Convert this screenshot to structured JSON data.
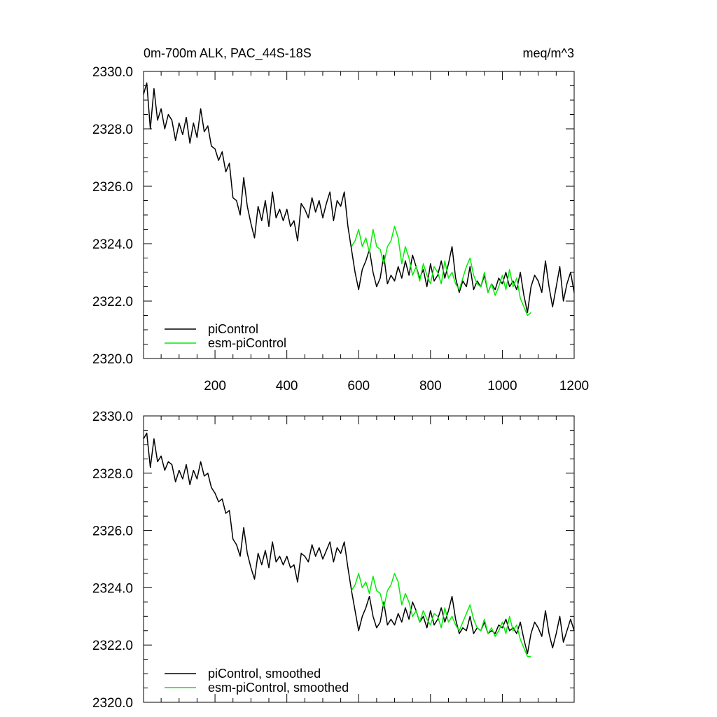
{
  "chart_data": [
    {
      "type": "line",
      "title_left": "0m-700m ALK, PAC_44S-18S",
      "title_right": "meq/m^3",
      "xlim": [
        1,
        1200
      ],
      "ylim": [
        2320,
        2330
      ],
      "xticks": [
        200,
        400,
        600,
        800,
        1000,
        1200
      ],
      "yticks": [
        2320.0,
        2322.0,
        2324.0,
        2326.0,
        2328.0,
        2330.0
      ],
      "ytick_labels": [
        "2320.0",
        "2322.0",
        "2324.0",
        "2326.0",
        "2328.0",
        "2330.0"
      ],
      "show_xtick_labels": true,
      "legend": "bottom-left",
      "series": [
        {
          "name": "piControl",
          "color": "#000000",
          "x": [
            1,
            10,
            20,
            30,
            40,
            50,
            60,
            70,
            80,
            90,
            100,
            110,
            120,
            130,
            140,
            150,
            160,
            170,
            180,
            190,
            200,
            210,
            220,
            230,
            240,
            250,
            260,
            270,
            280,
            290,
            300,
            310,
            320,
            330,
            340,
            350,
            360,
            370,
            380,
            390,
            400,
            410,
            420,
            430,
            440,
            450,
            460,
            470,
            480,
            490,
            500,
            510,
            520,
            530,
            540,
            550,
            560,
            570,
            580,
            590,
            600,
            610,
            620,
            630,
            640,
            650,
            660,
            670,
            680,
            690,
            700,
            710,
            720,
            730,
            740,
            750,
            760,
            770,
            780,
            790,
            800,
            810,
            820,
            830,
            840,
            850,
            860,
            870,
            880,
            890,
            900,
            910,
            920,
            930,
            940,
            950,
            960,
            970,
            980,
            990,
            1000,
            1010,
            1020,
            1030,
            1040,
            1050,
            1060,
            1070,
            1080,
            1090,
            1100,
            1110,
            1120,
            1130,
            1140,
            1150,
            1160,
            1170,
            1180,
            1190,
            1200
          ],
          "values": [
            2329.2,
            2329.6,
            2328.0,
            2329.4,
            2328.3,
            2328.7,
            2328.0,
            2328.5,
            2328.3,
            2327.6,
            2328.2,
            2327.8,
            2328.4,
            2327.5,
            2328.2,
            2327.7,
            2328.7,
            2327.9,
            2328.1,
            2327.4,
            2327.3,
            2326.9,
            2327.2,
            2326.5,
            2326.8,
            2325.6,
            2325.5,
            2325.0,
            2326.3,
            2325.3,
            2324.7,
            2324.2,
            2325.3,
            2324.8,
            2325.5,
            2324.6,
            2325.8,
            2324.9,
            2325.2,
            2324.8,
            2325.2,
            2324.6,
            2324.8,
            2324.1,
            2325.4,
            2325.2,
            2324.9,
            2325.6,
            2325.1,
            2325.5,
            2324.9,
            2325.4,
            2325.8,
            2324.8,
            2325.5,
            2325.3,
            2325.8,
            2324.6,
            2323.8,
            2323.0,
            2322.4,
            2323.1,
            2323.4,
            2323.8,
            2323.0,
            2322.5,
            2322.8,
            2323.6,
            2322.6,
            2322.9,
            2322.7,
            2323.2,
            2322.8,
            2323.4,
            2322.9,
            2323.6,
            2323.2,
            2322.8,
            2323.1,
            2322.5,
            2323.3,
            2322.7,
            2322.9,
            2323.4,
            2322.8,
            2323.3,
            2323.9,
            2322.8,
            2322.3,
            2322.7,
            2322.5,
            2323.2,
            2322.4,
            2322.7,
            2322.5,
            2322.9,
            2322.3,
            2322.6,
            2322.4,
            2322.8,
            2322.6,
            2323.0,
            2322.5,
            2322.7,
            2322.4,
            2323.0,
            2322.2,
            2321.6,
            2322.5,
            2322.9,
            2322.7,
            2322.3,
            2323.4,
            2322.5,
            2321.8,
            2322.5,
            2323.2,
            2322.0,
            2322.6,
            2323.0,
            2322.3
          ]
        },
        {
          "name": "esm-piControl",
          "color": "#00ee00",
          "x": [
            580,
            590,
            600,
            610,
            620,
            630,
            640,
            650,
            660,
            670,
            680,
            690,
            700,
            710,
            720,
            730,
            740,
            750,
            760,
            770,
            780,
            790,
            800,
            810,
            820,
            830,
            840,
            850,
            860,
            870,
            880,
            890,
            900,
            910,
            920,
            930,
            940,
            950,
            960,
            970,
            980,
            990,
            1000,
            1010,
            1020,
            1030,
            1040,
            1050,
            1060,
            1070,
            1080
          ],
          "values": [
            2323.9,
            2324.1,
            2324.5,
            2323.9,
            2324.2,
            2323.7,
            2324.5,
            2323.9,
            2323.8,
            2323.3,
            2323.9,
            2324.1,
            2324.6,
            2324.2,
            2323.3,
            2323.9,
            2323.5,
            2322.9,
            2323.2,
            2322.7,
            2323.3,
            2322.9,
            2322.6,
            2323.2,
            2323.0,
            2322.6,
            2323.4,
            2322.8,
            2323.0,
            2322.6,
            2322.4,
            2322.8,
            2323.2,
            2323.5,
            2322.9,
            2322.6,
            2322.5,
            2323.0,
            2322.3,
            2322.6,
            2322.2,
            2322.5,
            2322.9,
            2322.4,
            2323.1,
            2322.5,
            2322.8,
            2322.1,
            2321.8,
            2321.5,
            2321.6
          ]
        }
      ]
    },
    {
      "type": "line",
      "xlim": [
        1,
        1200
      ],
      "ylim": [
        2320,
        2330
      ],
      "xticks": [
        200,
        400,
        600,
        800,
        1000,
        1200
      ],
      "yticks": [
        2320.0,
        2322.0,
        2324.0,
        2326.0,
        2328.0,
        2330.0
      ],
      "ytick_labels": [
        "2320.0",
        "2322.0",
        "2324.0",
        "2326.0",
        "2328.0",
        "2330.0"
      ],
      "show_xtick_labels": false,
      "legend": "bottom-left",
      "series": [
        {
          "name": "piControl, smoothed",
          "color": "#000000",
          "x": [
            1,
            10,
            20,
            30,
            40,
            50,
            60,
            70,
            80,
            90,
            100,
            110,
            120,
            130,
            140,
            150,
            160,
            170,
            180,
            190,
            200,
            210,
            220,
            230,
            240,
            250,
            260,
            270,
            280,
            290,
            300,
            310,
            320,
            330,
            340,
            350,
            360,
            370,
            380,
            390,
            400,
            410,
            420,
            430,
            440,
            450,
            460,
            470,
            480,
            490,
            500,
            510,
            520,
            530,
            540,
            550,
            560,
            570,
            580,
            590,
            600,
            610,
            620,
            630,
            640,
            650,
            660,
            670,
            680,
            690,
            700,
            710,
            720,
            730,
            740,
            750,
            760,
            770,
            780,
            790,
            800,
            810,
            820,
            830,
            840,
            850,
            860,
            870,
            880,
            890,
            900,
            910,
            920,
            930,
            940,
            950,
            960,
            970,
            980,
            990,
            1000,
            1010,
            1020,
            1030,
            1040,
            1050,
            1060,
            1070,
            1080,
            1090,
            1100,
            1110,
            1120,
            1130,
            1140,
            1150,
            1160,
            1170,
            1180,
            1190,
            1200
          ],
          "values": [
            2329.2,
            2329.4,
            2328.2,
            2329.2,
            2328.4,
            2328.6,
            2328.1,
            2328.4,
            2328.3,
            2327.7,
            2328.1,
            2327.8,
            2328.3,
            2327.6,
            2328.1,
            2327.8,
            2328.4,
            2327.9,
            2328.0,
            2327.5,
            2327.3,
            2327.0,
            2327.1,
            2326.6,
            2326.7,
            2325.7,
            2325.5,
            2325.1,
            2326.1,
            2325.2,
            2324.7,
            2324.3,
            2325.2,
            2324.8,
            2325.3,
            2324.7,
            2325.6,
            2324.9,
            2325.1,
            2324.8,
            2325.1,
            2324.7,
            2324.8,
            2324.2,
            2325.2,
            2325.1,
            2324.9,
            2325.5,
            2325.1,
            2325.4,
            2325.0,
            2325.3,
            2325.6,
            2324.9,
            2325.4,
            2325.2,
            2325.6,
            2324.7,
            2323.9,
            2323.2,
            2322.5,
            2323.0,
            2323.3,
            2323.7,
            2323.0,
            2322.6,
            2322.8,
            2323.5,
            2322.7,
            2322.9,
            2322.7,
            2323.1,
            2322.8,
            2323.3,
            2322.9,
            2323.5,
            2323.2,
            2322.8,
            2323.0,
            2322.6,
            2323.2,
            2322.7,
            2322.9,
            2323.3,
            2322.8,
            2323.2,
            2323.7,
            2322.9,
            2322.4,
            2322.6,
            2322.5,
            2323.0,
            2322.4,
            2322.6,
            2322.5,
            2322.8,
            2322.4,
            2322.5,
            2322.4,
            2322.7,
            2322.6,
            2322.9,
            2322.5,
            2322.6,
            2322.4,
            2322.8,
            2322.2,
            2321.7,
            2322.4,
            2322.8,
            2322.6,
            2322.3,
            2323.2,
            2322.4,
            2321.9,
            2322.4,
            2323.0,
            2322.1,
            2322.5,
            2322.9,
            2322.5
          ]
        },
        {
          "name": "esm-piControl, smoothed",
          "color": "#00ee00",
          "x": [
            580,
            590,
            600,
            610,
            620,
            630,
            640,
            650,
            660,
            670,
            680,
            690,
            700,
            710,
            720,
            730,
            740,
            750,
            760,
            770,
            780,
            790,
            800,
            810,
            820,
            830,
            840,
            850,
            860,
            870,
            880,
            890,
            900,
            910,
            920,
            930,
            940,
            950,
            960,
            970,
            980,
            990,
            1000,
            1010,
            1020,
            1030,
            1040,
            1050,
            1060,
            1070,
            1080
          ],
          "values": [
            2323.9,
            2324.1,
            2324.5,
            2324.0,
            2324.2,
            2323.8,
            2324.4,
            2323.9,
            2323.8,
            2323.3,
            2323.9,
            2324.1,
            2324.5,
            2324.2,
            2323.4,
            2323.8,
            2323.5,
            2323.0,
            2323.2,
            2322.8,
            2323.2,
            2322.9,
            2322.7,
            2323.1,
            2323.0,
            2322.6,
            2323.3,
            2322.8,
            2323.0,
            2322.7,
            2322.5,
            2322.8,
            2323.1,
            2323.4,
            2322.9,
            2322.6,
            2322.5,
            2322.9,
            2322.4,
            2322.6,
            2322.3,
            2322.5,
            2322.8,
            2322.4,
            2323.0,
            2322.5,
            2322.7,
            2322.2,
            2321.9,
            2321.6,
            2321.6
          ]
        }
      ]
    }
  ]
}
